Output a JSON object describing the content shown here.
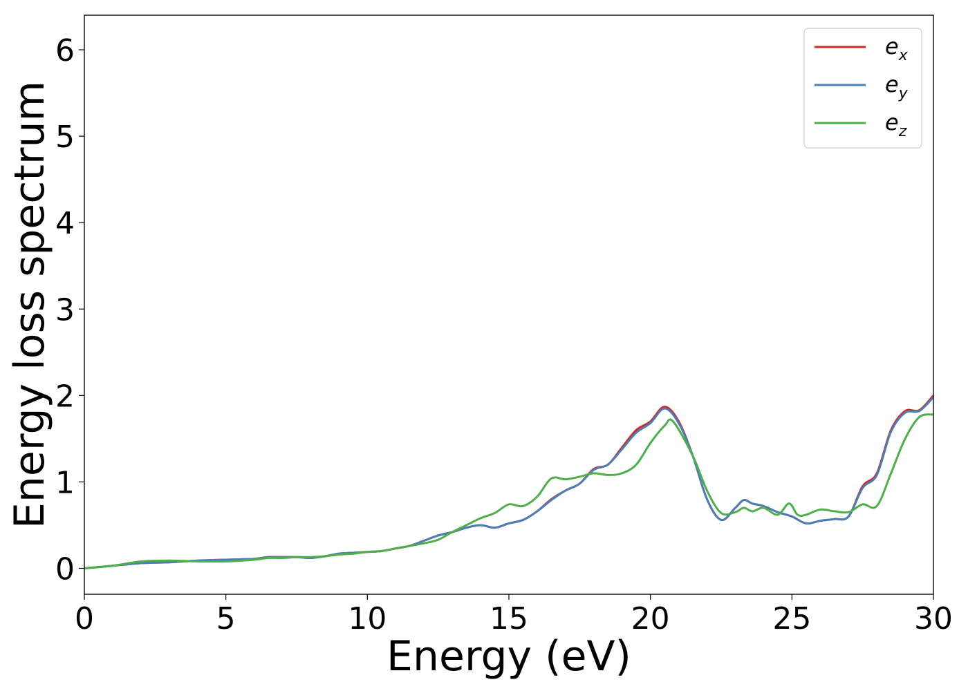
{
  "chart_data": {
    "type": "line",
    "xlabel": "Energy (eV)",
    "ylabel": "Energy loss spectrum",
    "xlim": [
      0,
      30
    ],
    "ylim": [
      -0.3,
      6.4
    ],
    "xticks": [
      0,
      5,
      10,
      15,
      20,
      25,
      30
    ],
    "yticks": [
      0,
      1,
      2,
      3,
      4,
      5,
      6
    ],
    "grid": false,
    "legend_position": "top-right",
    "series": [
      {
        "name": "e_x",
        "label_main": "e",
        "label_sub": "x",
        "color": "#d62728",
        "x": [
          0,
          1,
          2,
          3,
          4,
          5,
          6,
          6.5,
          7,
          7.5,
          8,
          8.5,
          9,
          9.5,
          10,
          10.5,
          11,
          11.5,
          12,
          12.5,
          13,
          13.5,
          14,
          14.5,
          15,
          15.5,
          16,
          16.5,
          17,
          17.5,
          18,
          18.5,
          19,
          19.5,
          20,
          20.5,
          21,
          21.5,
          22,
          22.5,
          23,
          23.3,
          23.6,
          24,
          24.5,
          25,
          25.5,
          26,
          26.5,
          27,
          27.5,
          28,
          28.5,
          29,
          29.5,
          30
        ],
        "y": [
          0,
          0.03,
          0.06,
          0.07,
          0.09,
          0.1,
          0.11,
          0.13,
          0.13,
          0.13,
          0.12,
          0.14,
          0.17,
          0.18,
          0.19,
          0.2,
          0.23,
          0.26,
          0.32,
          0.38,
          0.42,
          0.47,
          0.5,
          0.47,
          0.52,
          0.56,
          0.66,
          0.8,
          0.9,
          0.98,
          1.15,
          1.2,
          1.4,
          1.6,
          1.7,
          1.87,
          1.7,
          1.3,
          0.8,
          0.56,
          0.7,
          0.79,
          0.75,
          0.72,
          0.65,
          0.6,
          0.52,
          0.55,
          0.57,
          0.6,
          0.95,
          1.1,
          1.6,
          1.82,
          1.83,
          2.0
        ]
      },
      {
        "name": "e_y",
        "label_main": "e",
        "label_sub": "y",
        "color": "#4a7fb5",
        "x": [
          0,
          1,
          2,
          3,
          4,
          5,
          6,
          6.5,
          7,
          7.5,
          8,
          8.5,
          9,
          9.5,
          10,
          10.5,
          11,
          11.5,
          12,
          12.5,
          13,
          13.5,
          14,
          14.5,
          15,
          15.5,
          16,
          16.5,
          17,
          17.5,
          18,
          18.5,
          19,
          19.5,
          20,
          20.5,
          21,
          21.5,
          22,
          22.5,
          23,
          23.3,
          23.6,
          24,
          24.5,
          25,
          25.5,
          26,
          26.5,
          27,
          27.5,
          28,
          28.5,
          29,
          29.5,
          30
        ],
        "y": [
          0,
          0.03,
          0.06,
          0.07,
          0.09,
          0.1,
          0.11,
          0.13,
          0.13,
          0.13,
          0.12,
          0.14,
          0.17,
          0.18,
          0.19,
          0.2,
          0.23,
          0.26,
          0.32,
          0.38,
          0.42,
          0.47,
          0.5,
          0.47,
          0.52,
          0.56,
          0.66,
          0.79,
          0.9,
          0.98,
          1.14,
          1.2,
          1.38,
          1.57,
          1.68,
          1.85,
          1.68,
          1.3,
          0.8,
          0.56,
          0.7,
          0.79,
          0.75,
          0.72,
          0.65,
          0.6,
          0.52,
          0.55,
          0.57,
          0.6,
          0.93,
          1.08,
          1.58,
          1.8,
          1.82,
          1.98
        ]
      },
      {
        "name": "e_z",
        "label_main": "e",
        "label_sub": "z",
        "color": "#4daf4a",
        "x": [
          0,
          1,
          2,
          3,
          4,
          5,
          6,
          6.5,
          7,
          7.5,
          8,
          8.5,
          9,
          9.5,
          10,
          10.5,
          11,
          11.5,
          12,
          12.5,
          13,
          13.5,
          14,
          14.5,
          15,
          15.5,
          16,
          16.5,
          17,
          17.5,
          18,
          18.5,
          19,
          19.5,
          20,
          20.5,
          20.8,
          21.5,
          22,
          22.5,
          23,
          23.3,
          23.6,
          24,
          24.5,
          24.9,
          25.2,
          25.5,
          26,
          26.5,
          27,
          27.5,
          28,
          28.5,
          29,
          29.5,
          30
        ],
        "y": [
          0,
          0.03,
          0.08,
          0.09,
          0.08,
          0.08,
          0.1,
          0.12,
          0.12,
          0.13,
          0.13,
          0.14,
          0.16,
          0.17,
          0.19,
          0.2,
          0.23,
          0.26,
          0.29,
          0.33,
          0.42,
          0.5,
          0.58,
          0.64,
          0.74,
          0.72,
          0.83,
          1.04,
          1.03,
          1.06,
          1.1,
          1.08,
          1.1,
          1.2,
          1.45,
          1.65,
          1.7,
          1.3,
          0.9,
          0.64,
          0.65,
          0.7,
          0.66,
          0.7,
          0.62,
          0.75,
          0.62,
          0.62,
          0.68,
          0.66,
          0.65,
          0.74,
          0.72,
          1.1,
          1.5,
          1.75,
          1.78
        ]
      }
    ]
  }
}
